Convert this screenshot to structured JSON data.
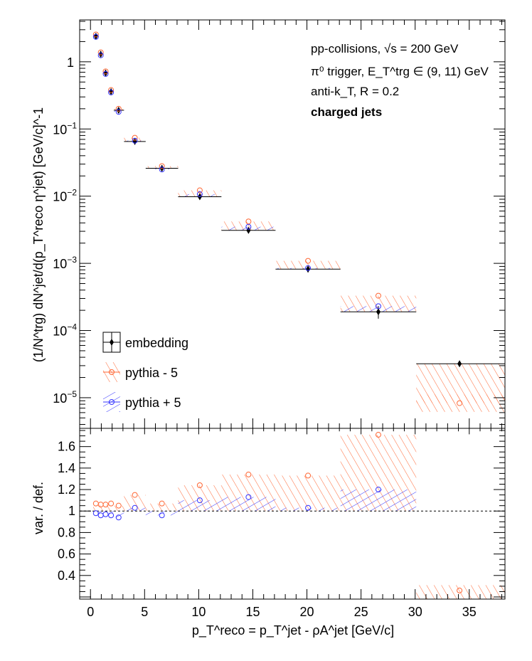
{
  "chart_data": [
    {
      "panel": "upper",
      "type": "scatter",
      "y_scale": "log",
      "x_range": [
        -1,
        38.3
      ],
      "y_range": [
        3.5e-06,
        4.2
      ],
      "ylabel": "(1/N^trg) dN^jet/d(p_T^reco η^jet) [GeV/c]^-1",
      "y_ticks": [
        {
          "value": 1,
          "base": "1",
          "exp": ""
        },
        {
          "value": 0.1,
          "base": "10",
          "exp": "−1"
        },
        {
          "value": 0.01,
          "base": "10",
          "exp": "−2"
        },
        {
          "value": 0.001,
          "base": "10",
          "exp": "−3"
        },
        {
          "value": 0.0001,
          "base": "10",
          "exp": "−4"
        },
        {
          "value": 1e-05,
          "base": "10",
          "exp": "−5"
        }
      ],
      "annotations": {
        "line1": "pp-collisions, √s = 200 GeV",
        "line2": "π⁰ trigger, E_T^trg ∈ (9, 11) GeV",
        "line3": "anti-k_T, R = 0.2",
        "line4": "charged jets"
      },
      "legend_position": "lower-left",
      "series": [
        {
          "name": "embedding",
          "color": "#000000",
          "marker": "diamond",
          "points": [
            {
              "x": 0.5,
              "xlo": 0.25,
              "xhi": 0.75,
              "y": 2.4,
              "yerr": 0.15
            },
            {
              "x": 0.95,
              "xlo": 0.75,
              "xhi": 1.2,
              "y": 1.3,
              "yerr": 0.1
            },
            {
              "x": 1.4,
              "xlo": 1.2,
              "xhi": 1.65,
              "y": 0.68,
              "yerr": 0.05
            },
            {
              "x": 1.9,
              "xlo": 1.65,
              "xhi": 2.15,
              "y": 0.36,
              "yerr": 0.03
            },
            {
              "x": 2.6,
              "xlo": 2.15,
              "xhi": 3.1,
              "y": 0.19,
              "yerr": 0.012
            },
            {
              "x": 4.1,
              "xlo": 3.1,
              "xhi": 5.1,
              "y": 0.065,
              "yerr": 0.004
            },
            {
              "x": 6.6,
              "xlo": 5.1,
              "xhi": 8.1,
              "y": 0.026,
              "yerr": 0.0015
            },
            {
              "x": 10.1,
              "xlo": 8.1,
              "xhi": 12.1,
              "y": 0.0098,
              "yerr": 0.0007
            },
            {
              "x": 14.6,
              "xlo": 12.1,
              "xhi": 17.1,
              "y": 0.0031,
              "yerr": 0.0003
            },
            {
              "x": 20.1,
              "xlo": 17.1,
              "xhi": 23.1,
              "y": 0.00082,
              "yerr": 9e-05
            },
            {
              "x": 26.6,
              "xlo": 23.1,
              "xhi": 30.1,
              "y": 0.00019,
              "yerr": 4e-05
            },
            {
              "x": 34.1,
              "xlo": 30.1,
              "xhi": 38.3,
              "y": 3.2e-05,
              "yerr": 3e-06
            }
          ]
        },
        {
          "name": "pythia - 5",
          "color": "#ff6633",
          "marker": "open-circle",
          "points": [
            {
              "x": 0.5,
              "y": 2.55
            },
            {
              "x": 0.95,
              "y": 1.38
            },
            {
              "x": 1.4,
              "y": 0.72
            },
            {
              "x": 1.9,
              "y": 0.38
            },
            {
              "x": 2.6,
              "y": 0.2
            },
            {
              "x": 4.1,
              "y": 0.074
            },
            {
              "x": 6.6,
              "y": 0.028
            },
            {
              "x": 10.1,
              "y": 0.0122
            },
            {
              "x": 14.6,
              "y": 0.0042
            },
            {
              "x": 20.1,
              "y": 0.00109
            },
            {
              "x": 26.6,
              "y": 0.00033
            },
            {
              "x": 34.1,
              "y": 8.3e-06
            }
          ]
        },
        {
          "name": "pythia + 5",
          "color": "#3333ff",
          "marker": "open-circle",
          "points": [
            {
              "x": 0.5,
              "y": 2.35
            },
            {
              "x": 0.95,
              "y": 1.25
            },
            {
              "x": 1.4,
              "y": 0.66
            },
            {
              "x": 1.9,
              "y": 0.35
            },
            {
              "x": 2.6,
              "y": 0.18
            },
            {
              "x": 4.1,
              "y": 0.067
            },
            {
              "x": 6.6,
              "y": 0.025
            },
            {
              "x": 10.1,
              "y": 0.0107
            },
            {
              "x": 14.6,
              "y": 0.0035
            },
            {
              "x": 20.1,
              "y": 0.00085
            },
            {
              "x": 26.6,
              "y": 0.00023
            }
          ]
        }
      ]
    },
    {
      "panel": "lower",
      "type": "scatter",
      "x_range": [
        -1,
        38.3
      ],
      "y_range": [
        0.18,
        1.77
      ],
      "xlabel": "p_T^reco = p_T^jet - ρA^jet [GeV/c]",
      "ylabel": "var. / def.",
      "x_ticks": [
        0,
        5,
        10,
        15,
        20,
        25,
        30,
        35
      ],
      "y_ticks": [
        0.4,
        0.6,
        0.8,
        1,
        1.2,
        1.4,
        1.6
      ],
      "reference_line": 1,
      "series": [
        {
          "name": "pythia - 5",
          "color": "#ff6633",
          "points": [
            {
              "x": 0.5,
              "y": 1.07
            },
            {
              "x": 0.95,
              "y": 1.06
            },
            {
              "x": 1.4,
              "y": 1.06
            },
            {
              "x": 1.9,
              "y": 1.07
            },
            {
              "x": 2.6,
              "y": 1.05
            },
            {
              "x": 4.1,
              "y": 1.15
            },
            {
              "x": 6.6,
              "y": 1.07
            },
            {
              "x": 10.1,
              "y": 1.24
            },
            {
              "x": 14.6,
              "y": 1.34
            },
            {
              "x": 20.1,
              "y": 1.33
            },
            {
              "x": 26.6,
              "y": 1.71
            },
            {
              "x": 34.1,
              "y": 0.26
            }
          ]
        },
        {
          "name": "pythia + 5",
          "color": "#3333ff",
          "points": [
            {
              "x": 0.5,
              "y": 0.98
            },
            {
              "x": 0.95,
              "y": 0.96
            },
            {
              "x": 1.4,
              "y": 0.97
            },
            {
              "x": 1.9,
              "y": 0.96
            },
            {
              "x": 2.6,
              "y": 0.94
            },
            {
              "x": 4.1,
              "y": 1.03
            },
            {
              "x": 6.6,
              "y": 0.96
            },
            {
              "x": 10.1,
              "y": 1.1
            },
            {
              "x": 14.6,
              "y": 1.13
            },
            {
              "x": 20.1,
              "y": 1.03
            },
            {
              "x": 26.6,
              "y": 1.2
            }
          ]
        }
      ]
    }
  ]
}
